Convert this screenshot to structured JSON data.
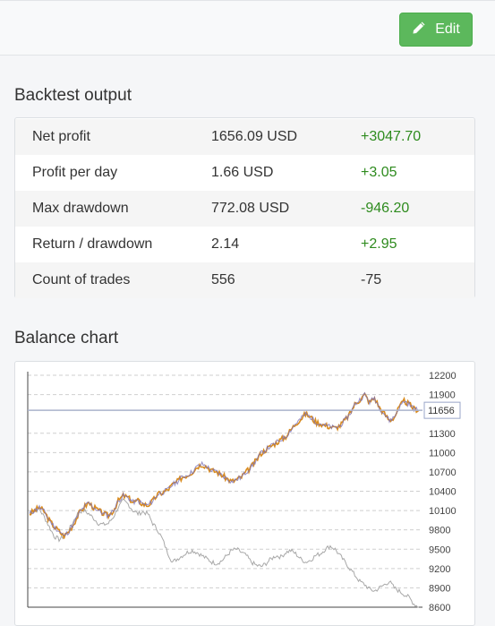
{
  "toolbar": {
    "edit_label": "Edit",
    "edit_icon": "pencil-icon"
  },
  "backtest": {
    "title": "Backtest output",
    "rows": [
      {
        "label": "Net profit",
        "value": "1656.09 USD",
        "delta": "+3047.70",
        "delta_color": "#2e8b1e"
      },
      {
        "label": "Profit per day",
        "value": "1.66 USD",
        "delta": "+3.05",
        "delta_color": "#2e8b1e"
      },
      {
        "label": "Max drawdown",
        "value": "772.08 USD",
        "delta": "-946.20",
        "delta_color": "#2e8b1e"
      },
      {
        "label": "Return / drawdown",
        "value": "2.14",
        "delta": "+2.95",
        "delta_color": "#2e8b1e"
      },
      {
        "label": "Count of trades",
        "value": "556",
        "delta": "-75",
        "delta_color": "#333333"
      }
    ]
  },
  "balance": {
    "title": "Balance chart"
  },
  "chart_data": {
    "type": "line",
    "title": "",
    "xlabel": "",
    "ylabel": "",
    "ylim": [
      8600,
      12200
    ],
    "y_ticks": [
      12200,
      11900,
      11656,
      11300,
      11000,
      10700,
      10400,
      10100,
      9800,
      9500,
      9200,
      8900,
      8600
    ],
    "current_value": 11656,
    "grid": true,
    "colors": {
      "primary": "#d98b1e",
      "primary_overlay": "#7a72b8",
      "comparison": "#a8a8a8",
      "current_line": "#aab2cc"
    },
    "series": [
      {
        "values": [
          10050,
          10100,
          10150,
          10080,
          9950,
          9850,
          9780,
          9700,
          9780,
          9900,
          10050,
          10150,
          10220,
          10150,
          10100,
          10050,
          10020,
          10100,
          10250,
          10330,
          10300,
          10230,
          10250,
          10200,
          10180,
          10250,
          10350,
          10380,
          10420,
          10500,
          10550,
          10620,
          10650,
          10700,
          10780,
          10820,
          10780,
          10720,
          10700,
          10650,
          10600,
          10550,
          10580,
          10620,
          10700,
          10780,
          10880,
          10990,
          11050,
          11100,
          11150,
          11200,
          11250,
          11350,
          11450,
          11520,
          11600,
          11550,
          11480,
          11450,
          11420,
          11400,
          11380,
          11420,
          11500,
          11600,
          11750,
          11820,
          11900,
          11780,
          11850,
          11700,
          11600,
          11500,
          11550,
          11700,
          11800,
          11750,
          11680,
          11656
        ]
      },
      {
        "values": [
          10050,
          10100,
          10120,
          10000,
          9850,
          9700,
          9650,
          9700,
          9800,
          9950,
          10080,
          10100,
          10050,
          9980,
          9900,
          9880,
          9900,
          10000,
          10150,
          10250,
          10200,
          10100,
          10050,
          10080,
          10050,
          9900,
          9800,
          9650,
          9450,
          9300,
          9350,
          9400,
          9450,
          9480,
          9450,
          9400,
          9350,
          9300,
          9280,
          9320,
          9400,
          9480,
          9500,
          9450,
          9400,
          9300,
          9250,
          9230,
          9280,
          9350,
          9400,
          9380,
          9450,
          9480,
          9430,
          9350,
          9300,
          9330,
          9400,
          9430,
          9500,
          9550,
          9500,
          9400,
          9300,
          9200,
          9100,
          9000,
          8950,
          8880,
          8850,
          8900,
          8950,
          9000,
          8900,
          8850,
          8800,
          8750,
          8650,
          8600
        ]
      }
    ]
  }
}
